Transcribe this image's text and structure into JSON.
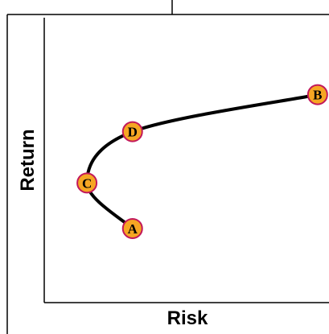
{
  "chart_data": {
    "type": "line",
    "xlabel": "Risk",
    "ylabel": "Return",
    "grid": false,
    "curve_color": "#000000",
    "marker_fill": "#f6a623",
    "marker_stroke": "#c2185b",
    "points": [
      {
        "label": "A",
        "risk": 0.31,
        "return": 0.26
      },
      {
        "label": "C",
        "risk": 0.15,
        "return": 0.42
      },
      {
        "label": "D",
        "risk": 0.31,
        "return": 0.6
      },
      {
        "label": "B",
        "risk": 0.96,
        "return": 0.73
      }
    ],
    "curve_order": [
      "A",
      "C",
      "D",
      "B"
    ]
  }
}
